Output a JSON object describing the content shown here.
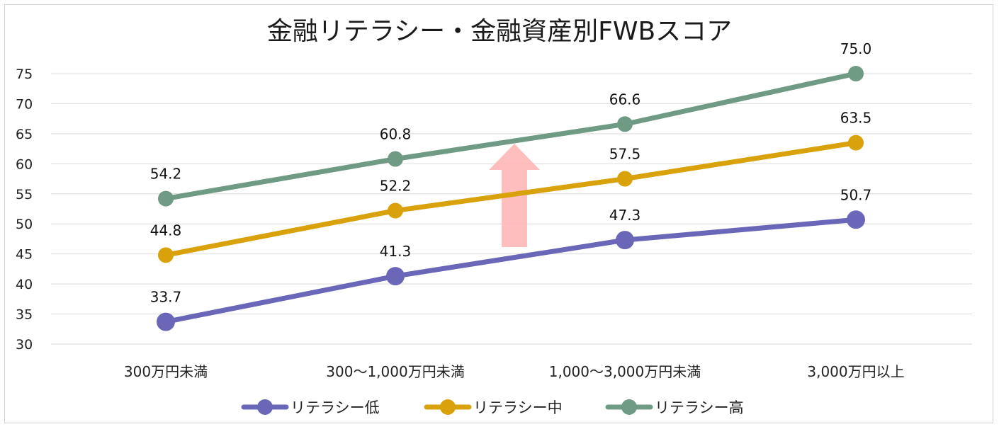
{
  "chart_data": {
    "type": "line",
    "title": "金融リテラシー・金融資産別FWBスコア",
    "categories": [
      "300万円未満",
      "300～1,000万円未満",
      "1,000～3,000万円未満",
      "3,000万円以上"
    ],
    "ylim": [
      30,
      75
    ],
    "yticks": [
      30,
      35,
      40,
      45,
      50,
      55,
      60,
      65,
      70,
      75
    ],
    "ytick_labels": [
      "30",
      "35",
      "40",
      "45",
      "50",
      "55",
      "60",
      "65",
      "70",
      "75"
    ],
    "grid": true,
    "legend_position": "bottom",
    "series": [
      {
        "name": "リテラシー低",
        "color": "#6a67b8",
        "values": [
          33.7,
          41.3,
          47.3,
          50.7
        ],
        "labels": [
          "33.7",
          "41.3",
          "47.3",
          "50.7"
        ]
      },
      {
        "name": "リテラシー中",
        "color": "#d9a20a",
        "values": [
          44.8,
          52.2,
          57.5,
          63.5
        ],
        "labels": [
          "44.8",
          "52.2",
          "57.5",
          "63.5"
        ]
      },
      {
        "name": "リテラシー高",
        "color": "#6f9a84",
        "values": [
          54.2,
          60.8,
          66.6,
          75.0
        ],
        "labels": [
          "54.2",
          "60.8",
          "66.6",
          "75.0"
        ]
      }
    ],
    "annotation": {
      "type": "up-arrow",
      "color": "#ffb3b3"
    }
  }
}
